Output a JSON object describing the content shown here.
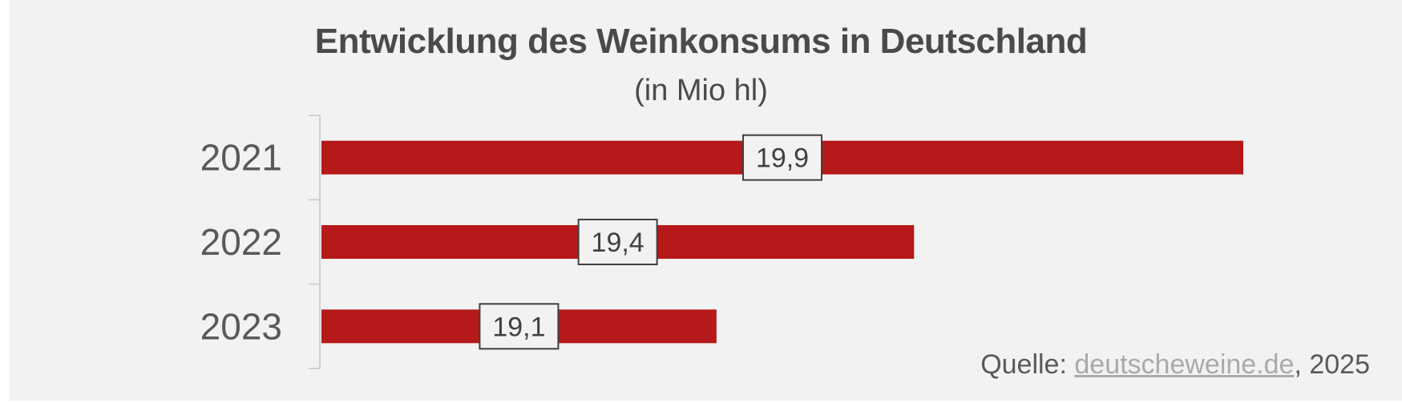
{
  "chart_data": {
    "type": "bar",
    "orientation": "horizontal",
    "title": "Entwicklung des Weinkonsums in Deutschland",
    "subtitle": "(in Mio hl)",
    "categories": [
      "2021",
      "2022",
      "2023"
    ],
    "values": [
      19.9,
      19.4,
      19.1
    ],
    "value_labels": [
      "19,9",
      "19,4",
      "19,1"
    ],
    "xlim": [
      18.5,
      19.9
    ],
    "grid": false,
    "legend": "none",
    "bar_color": "#b5191a"
  },
  "source": {
    "prefix": "Quelle: ",
    "link_text": "deutscheweine.de",
    "suffix": ", 2025"
  }
}
